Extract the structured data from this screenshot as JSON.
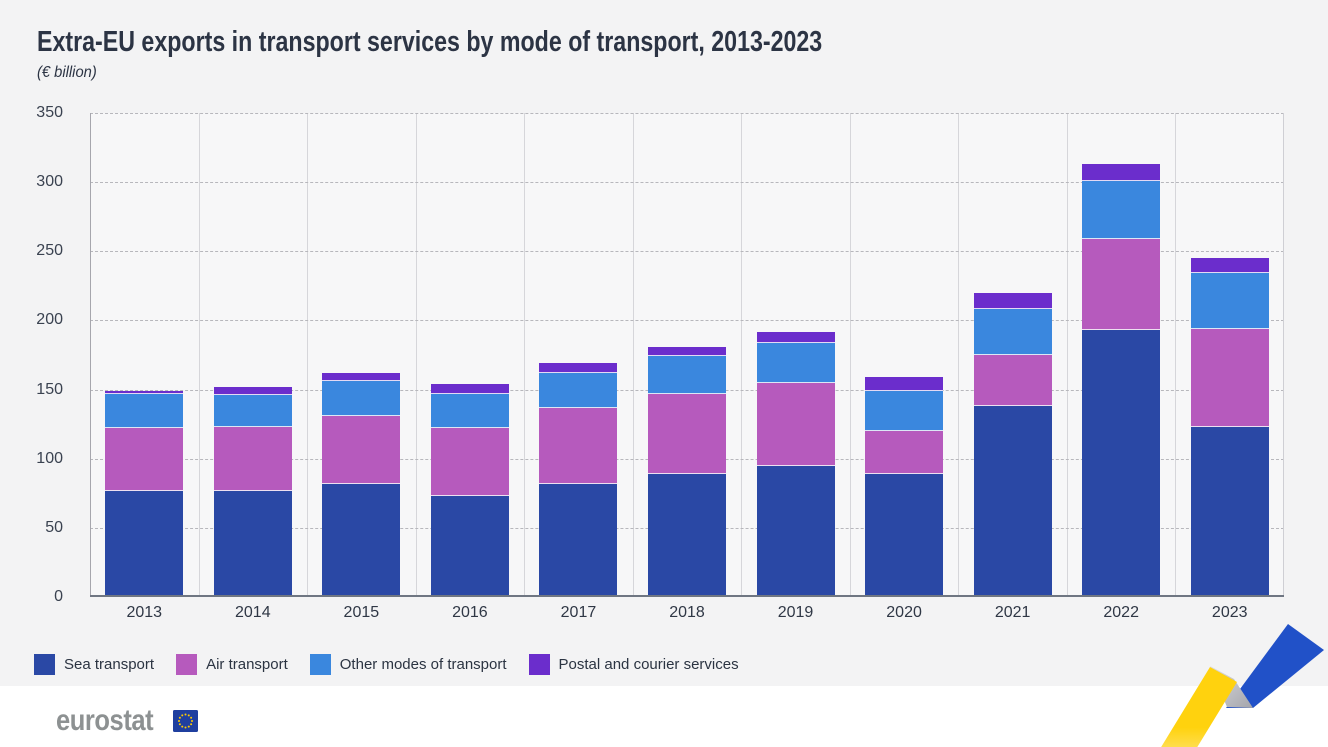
{
  "header": {
    "title": "Extra-EU exports in transport services by mode of transport, 2013-2023",
    "subtitle": "(€ billion)"
  },
  "chart_data": {
    "type": "bar",
    "stacked": true,
    "title": "Extra-EU exports in transport services by mode of transport, 2013-2023",
    "unit": "€ billion",
    "categories": [
      "2013",
      "2014",
      "2015",
      "2016",
      "2017",
      "2018",
      "2019",
      "2020",
      "2021",
      "2022",
      "2023"
    ],
    "series": [
      {
        "name": "Sea transport",
        "color": "#2a48a5",
        "values": [
          77,
          77,
          82,
          73,
          82,
          89,
          95,
          89,
          138,
          193,
          123
        ]
      },
      {
        "name": "Air transport",
        "color": "#b65abd",
        "values": [
          45,
          46,
          49,
          49,
          55,
          58,
          60,
          31,
          37,
          66,
          71
        ]
      },
      {
        "name": "Other modes of transport",
        "color": "#3a87de",
        "values": [
          25,
          23,
          25,
          25,
          25,
          27,
          29,
          29,
          33,
          42,
          40
        ]
      },
      {
        "name": "Postal and courier services",
        "color": "#6b2dcc",
        "values": [
          2,
          6,
          6,
          7,
          7,
          7,
          8,
          10,
          12,
          12,
          11
        ]
      }
    ],
    "totals": [
      149,
      152,
      162,
      154,
      169,
      181,
      192,
      159,
      220,
      313,
      245
    ],
    "xlabel": "",
    "ylabel": "",
    "ylim": [
      0,
      350
    ],
    "yticks": [
      0,
      50,
      100,
      150,
      200,
      250,
      300,
      350
    ],
    "grid": "horizontal dashed gridlines every 50; solid vertical category separators",
    "legend_position": "bottom-left"
  },
  "footer": {
    "logo_text": "eurostat"
  },
  "branding": {
    "logo_gray": "#8d9192",
    "flag_blue": "#1f3f9f",
    "star_yellow": "#ffcc00",
    "ribbon_yellow": "#ffd20e",
    "ribbon_yellow_fade": "#ffefae",
    "ribbon_blue": "#2151c8",
    "ribbon_gray_light": "#dedee1",
    "ribbon_gray_dark": "#a4a5ab"
  }
}
